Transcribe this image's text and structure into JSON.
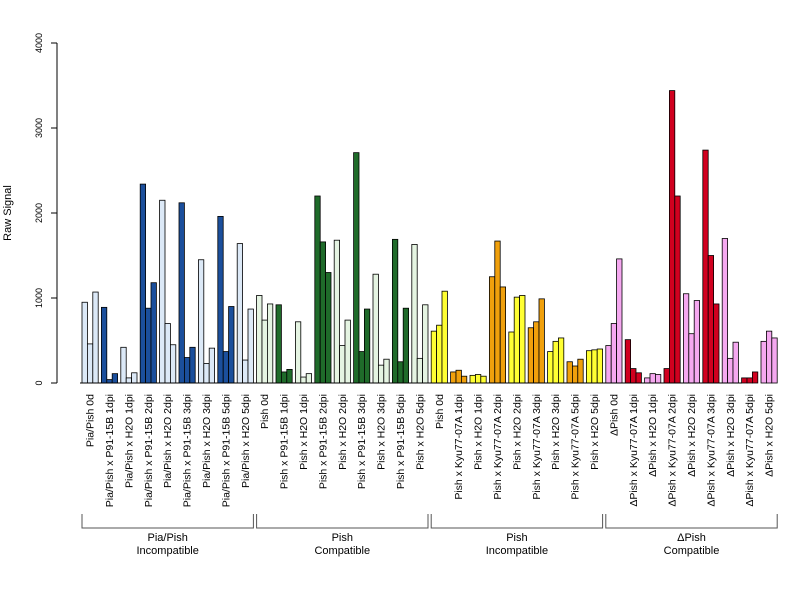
{
  "chart_data": {
    "type": "bar",
    "title": "",
    "xlabel": "",
    "ylabel": "Raw Signal",
    "ylim": [
      0,
      4000
    ],
    "yticks": [
      0,
      1000,
      2000,
      3000,
      4000
    ],
    "bars_per_category": 3,
    "categories": [
      "Pia/Pish 0d",
      "Pia/Pish x P91-15B 1dpi",
      "Pia/Pish x H2O 1dpi",
      "Pia/Pish x P91-15B 2dpi",
      "Pia/Pish x H2O 2dpi",
      "Pia/Pish x P91-15B 3dpi",
      "Pia/Pish x H2O 3dpi",
      "Pia/Pish x P91-15B 5dpi",
      "Pia/Pish x H2O 5dpi",
      "Pish 0d",
      "Pish x P91-15B 1dpi",
      "Pish x H2O 1dpi",
      "Pish x P91-15B 2dpi",
      "Pish x H2O 2dpi",
      "Pish x P91-15B 3dpi",
      "Pish x H2O 3dpi",
      "Pish x P91-15B 5dpi",
      "Pish x H2O 5dpi",
      "Pish 0d",
      "Pish x Kyu77-07A 1dpi",
      "Pish x H2O 1dpi",
      "Pish x Kyu77-07A 2dpi",
      "Pish x H2O 2dpi",
      "Pish x Kyu77-07A 3dpi",
      "Pish x H2O 3dpi",
      "Pish x Kyu77-07A 5dpi",
      "Pish x H2O 5dpi",
      "ΔPish 0d",
      "ΔPish x Kyu77-07A 1dpi",
      "ΔPish x H2O 1dpi",
      "ΔPish x Kyu77-07A 2dpi",
      "ΔPish x H2O 2dpi",
      "ΔPish x Kyu77-07A 3dpi",
      "ΔPish x H2O 3dpi",
      "ΔPish x Kyu77-07A 5dpi",
      "ΔPish x H2O 5dpi"
    ],
    "values": [
      [
        950,
        460,
        1070
      ],
      [
        890,
        40,
        110
      ],
      [
        420,
        60,
        120
      ],
      [
        2340,
        880,
        1180
      ],
      [
        2150,
        700,
        450
      ],
      [
        2120,
        300,
        420
      ],
      [
        1450,
        230,
        410
      ],
      [
        1960,
        370,
        900
      ],
      [
        1640,
        270,
        870
      ],
      [
        1030,
        740,
        930
      ],
      [
        920,
        130,
        160
      ],
      [
        720,
        70,
        110
      ],
      [
        2200,
        1660,
        1300
      ],
      [
        1680,
        440,
        740
      ],
      [
        2710,
        370,
        870
      ],
      [
        1280,
        210,
        280
      ],
      [
        1690,
        250,
        880
      ],
      [
        1630,
        290,
        920
      ],
      [
        610,
        680,
        1080
      ],
      [
        130,
        150,
        80
      ],
      [
        90,
        100,
        80
      ],
      [
        1250,
        1670,
        1130
      ],
      [
        600,
        1010,
        1030
      ],
      [
        650,
        720,
        990
      ],
      [
        370,
        490,
        530
      ],
      [
        250,
        200,
        280
      ],
      [
        380,
        390,
        400
      ],
      [
        440,
        700,
        1460
      ],
      [
        510,
        170,
        120
      ],
      [
        60,
        110,
        100
      ],
      [
        170,
        3440,
        2200
      ],
      [
        1050,
        580,
        970
      ],
      [
        2740,
        1500,
        930
      ],
      [
        1700,
        290,
        480
      ],
      [
        60,
        60,
        130
      ],
      [
        490,
        610,
        530
      ]
    ],
    "category_colors": [
      "#dce9f7",
      "#1b4f9c",
      "#dce9f7",
      "#1b4f9c",
      "#dce9f7",
      "#1b4f9c",
      "#dce9f7",
      "#1b4f9c",
      "#dce9f7",
      "#e5f4e2",
      "#1f6b2a",
      "#e5f4e2",
      "#1f6b2a",
      "#e5f4e2",
      "#1f6b2a",
      "#e5f4e2",
      "#1f6b2a",
      "#e5f4e2",
      "#ffff33",
      "#f0a00c",
      "#ffff33",
      "#f0a00c",
      "#ffff33",
      "#f0a00c",
      "#ffff33",
      "#f0a00c",
      "#ffff33",
      "#f5a8f0",
      "#d0001f",
      "#f5a8f0",
      "#d0001f",
      "#f5a8f0",
      "#d0001f",
      "#f5a8f0",
      "#d0001f",
      "#f5a8f0"
    ],
    "groups": [
      {
        "line1": "Pia/Pish",
        "line2": "Incompatible",
        "start": 0,
        "end": 8
      },
      {
        "line1": "Pish",
        "line2": "Compatible",
        "start": 9,
        "end": 17
      },
      {
        "line1": "Pish",
        "line2": "Incompatible",
        "start": 18,
        "end": 26
      },
      {
        "line1": "ΔPish",
        "line2": "Compatible",
        "start": 27,
        "end": 35
      }
    ]
  }
}
